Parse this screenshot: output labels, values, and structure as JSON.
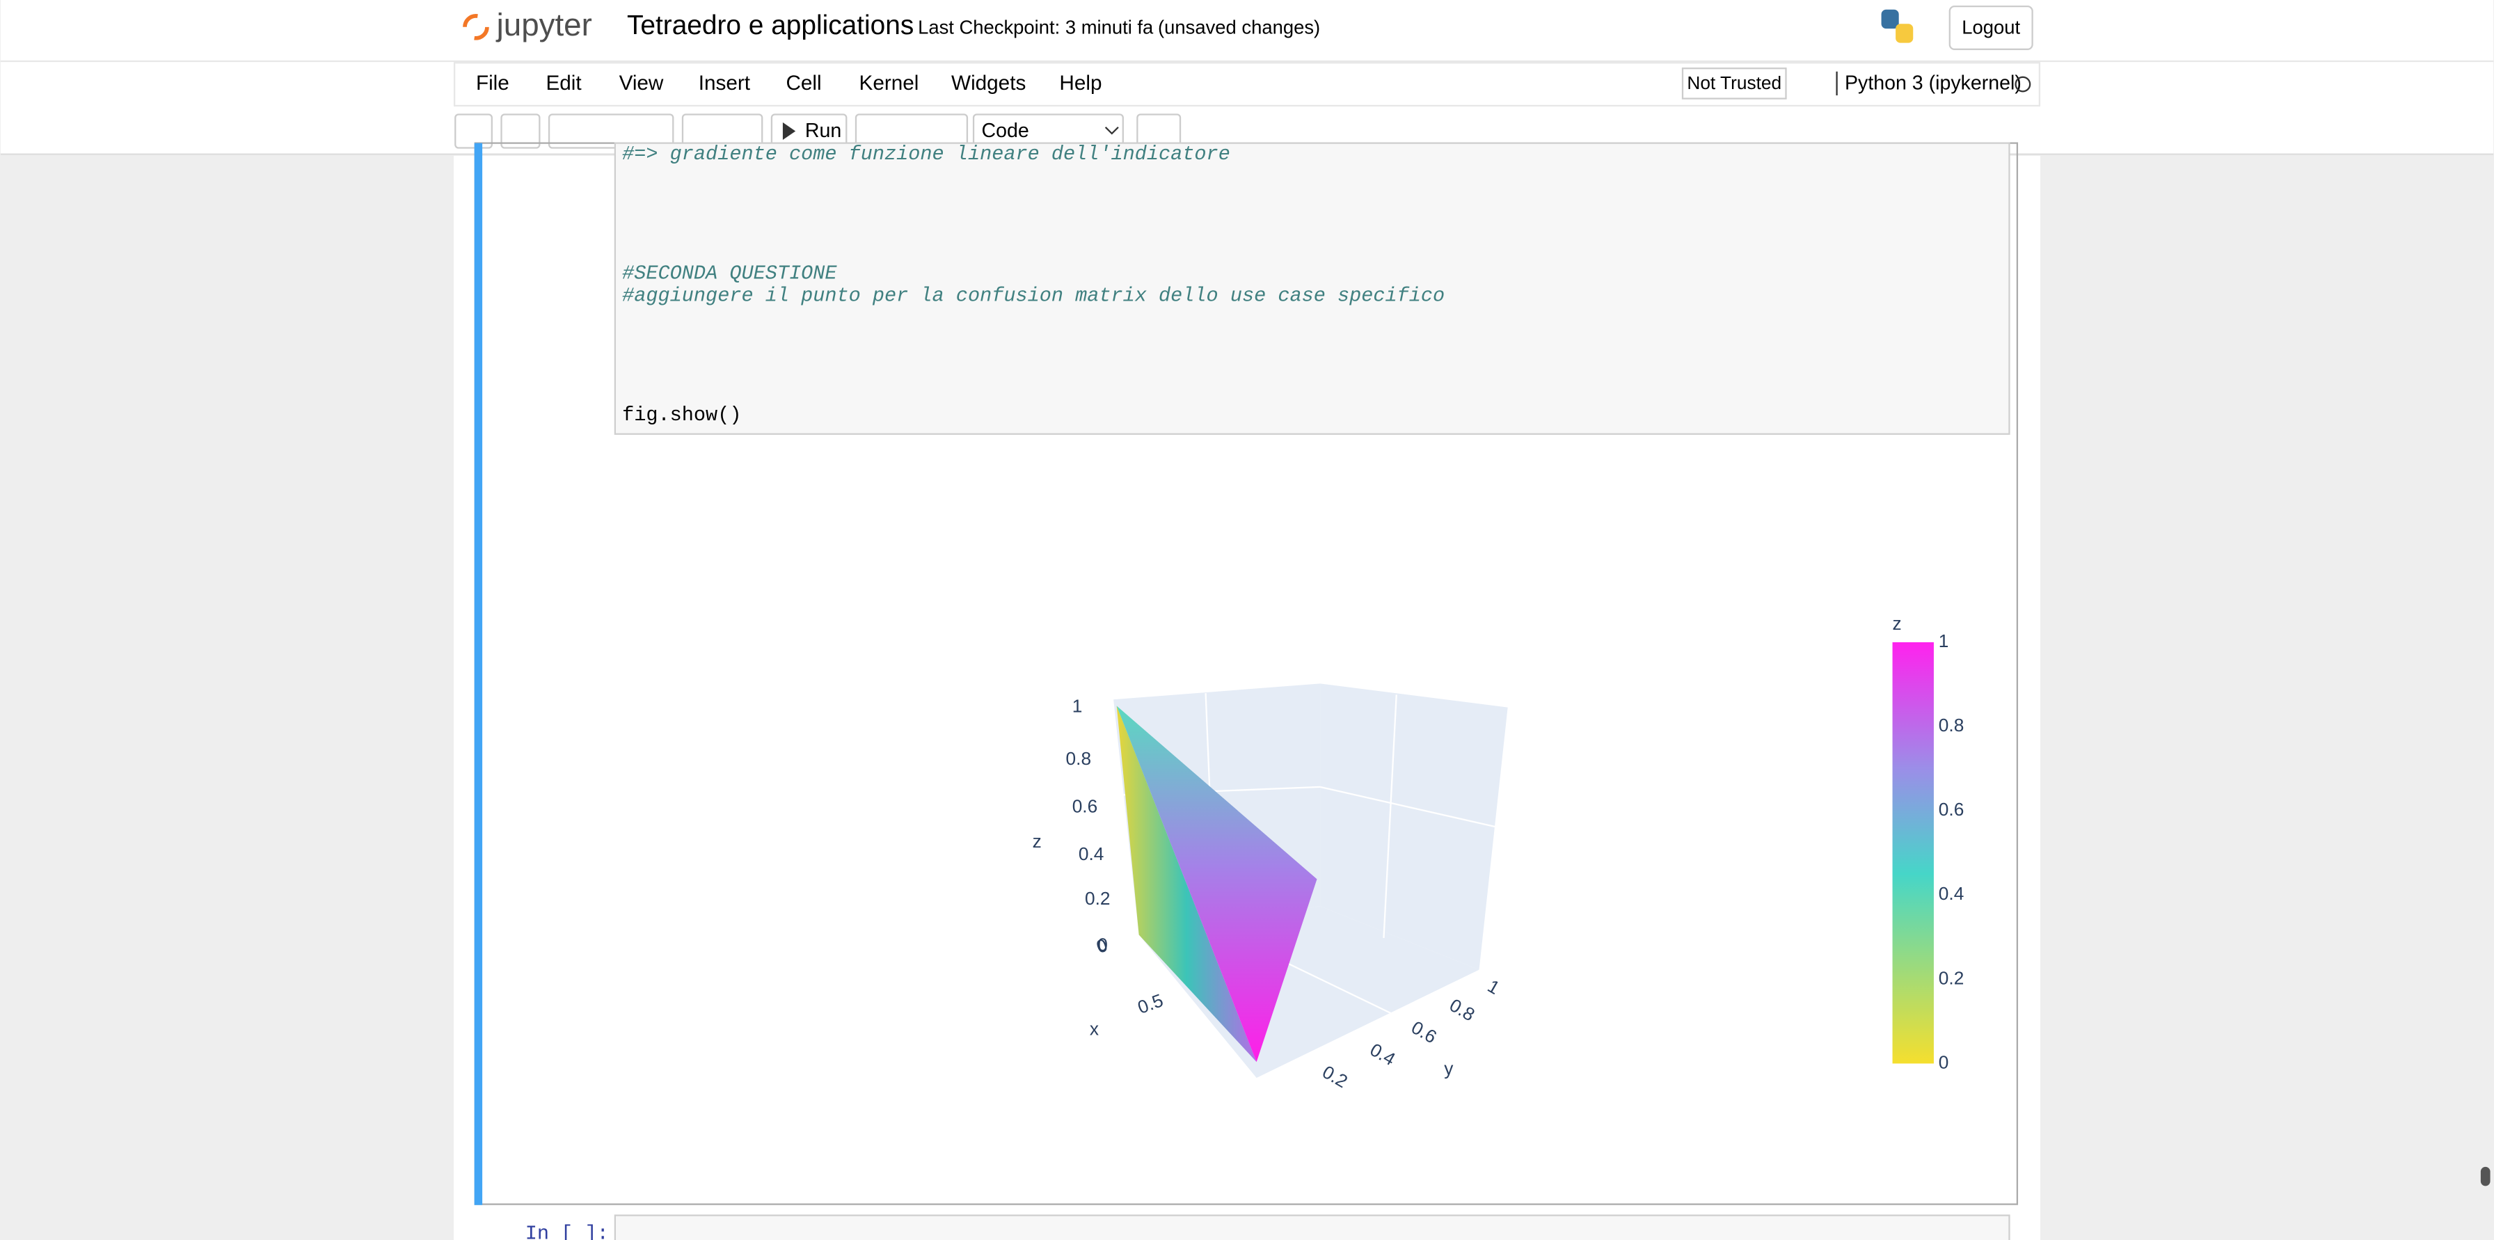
{
  "header": {
    "logo": "jupyter",
    "title": "Tetraedro e applications",
    "checkpoint": "Last Checkpoint: 3 minuti fa",
    "status": "(unsaved changes)",
    "logout": "Logout"
  },
  "menu": {
    "items": [
      "File",
      "Edit",
      "View",
      "Insert",
      "Cell",
      "Kernel",
      "Widgets",
      "Help"
    ],
    "trust": "Not Trusted",
    "kernel": "Python 3 (ipykernel)"
  },
  "toolbar": {
    "run": "Run",
    "cell_type": "Code"
  },
  "cell": {
    "code": [
      "#=> gradiente come funzione lineare dell'indicatore",
      "#SECONDA QUESTIONE",
      "#aggiungere il punto per la confusion matrix dello use case specifico",
      "fig.show()"
    ]
  },
  "plot": {
    "z_axis": {
      "title": "z",
      "ticks": [
        "1",
        "0.8",
        "0.6",
        "0.4",
        "0.2",
        "0"
      ]
    },
    "x_axis": {
      "title": "x",
      "ticks": [
        "0",
        "0.5"
      ]
    },
    "y_axis": {
      "title": "y",
      "ticks": [
        "0.2",
        "0.4",
        "0.6",
        "0.8",
        "1"
      ]
    },
    "colorbar": {
      "title": "z",
      "ticks": [
        "1",
        "0.8",
        "0.6",
        "0.4",
        "0.2",
        "0"
      ]
    }
  },
  "next_cell": {
    "prompt": "In [ ]:"
  }
}
